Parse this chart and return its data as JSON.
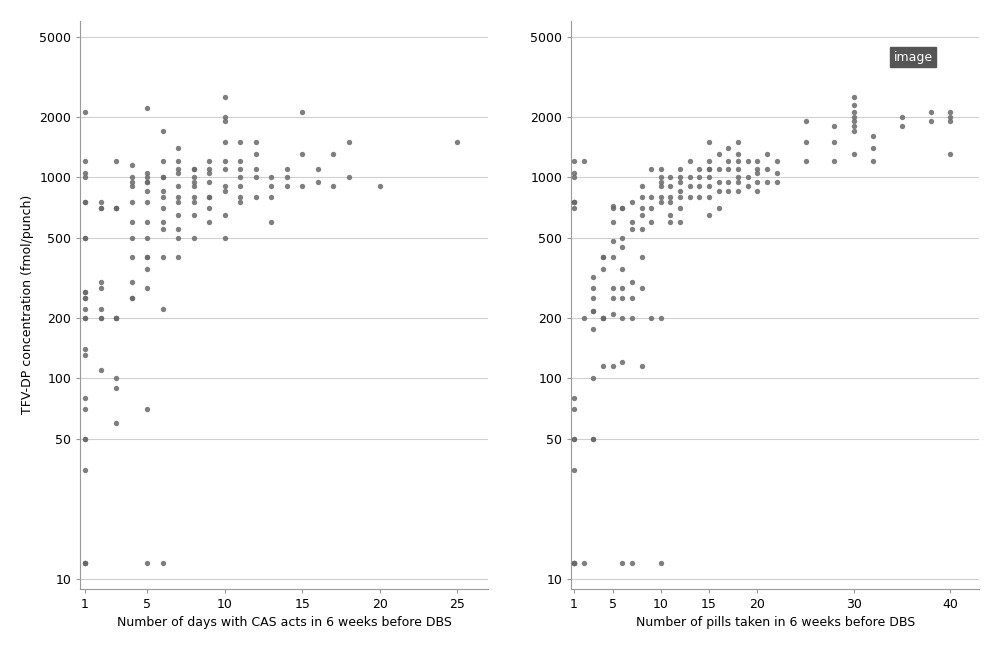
{
  "left_x": [
    1,
    1,
    1,
    1,
    1,
    1,
    1,
    1,
    1,
    1,
    1,
    1,
    1,
    1,
    1,
    1,
    1,
    1,
    1,
    1,
    1,
    1,
    1,
    1,
    1,
    2,
    2,
    2,
    2,
    2,
    2,
    2,
    2,
    2,
    3,
    3,
    3,
    3,
    3,
    3,
    3,
    3,
    3,
    3,
    4,
    4,
    4,
    4,
    4,
    4,
    4,
    4,
    4,
    4,
    4,
    5,
    5,
    5,
    5,
    5,
    5,
    5,
    5,
    5,
    5,
    5,
    5,
    5,
    5,
    5,
    6,
    6,
    6,
    6,
    6,
    6,
    6,
    6,
    6,
    6,
    6,
    6,
    7,
    7,
    7,
    7,
    7,
    7,
    7,
    7,
    7,
    7,
    7,
    8,
    8,
    8,
    8,
    8,
    8,
    8,
    8,
    8,
    9,
    9,
    9,
    9,
    9,
    9,
    9,
    9,
    10,
    10,
    10,
    10,
    10,
    10,
    10,
    10,
    10,
    10,
    11,
    11,
    11,
    11,
    11,
    11,
    11,
    12,
    12,
    12,
    12,
    12,
    13,
    13,
    13,
    13,
    14,
    14,
    14,
    15,
    15,
    15,
    16,
    16,
    17,
    17,
    18,
    18,
    20,
    25
  ],
  "left_y": [
    2100,
    1200,
    1050,
    1000,
    750,
    750,
    500,
    500,
    270,
    270,
    250,
    250,
    220,
    200,
    200,
    140,
    130,
    80,
    70,
    50,
    50,
    35,
    12,
    12,
    12,
    750,
    700,
    700,
    300,
    280,
    220,
    200,
    200,
    110,
    1200,
    700,
    700,
    700,
    200,
    200,
    200,
    100,
    90,
    60,
    1150,
    1000,
    950,
    900,
    750,
    600,
    500,
    400,
    300,
    250,
    250,
    2200,
    1050,
    1000,
    950,
    950,
    850,
    750,
    600,
    500,
    400,
    400,
    350,
    280,
    70,
    12,
    1700,
    1200,
    1000,
    1000,
    850,
    800,
    700,
    600,
    550,
    400,
    220,
    12,
    1400,
    1200,
    1100,
    1050,
    900,
    800,
    750,
    650,
    550,
    500,
    400,
    1100,
    1100,
    1000,
    950,
    900,
    800,
    750,
    650,
    500,
    1200,
    1100,
    1050,
    950,
    800,
    800,
    700,
    600,
    2500,
    2000,
    1900,
    1500,
    1200,
    1100,
    900,
    850,
    650,
    500,
    1500,
    1200,
    1100,
    1000,
    900,
    800,
    750,
    1500,
    1300,
    1100,
    1000,
    800,
    1000,
    900,
    800,
    600,
    1100,
    1000,
    900,
    2100,
    1300,
    900,
    1100,
    950,
    1300,
    900,
    1500,
    1000,
    900,
    1500
  ],
  "right_x": [
    1,
    1,
    1,
    1,
    1,
    1,
    1,
    1,
    1,
    1,
    1,
    1,
    1,
    1,
    1,
    1,
    2,
    2,
    2,
    3,
    3,
    3,
    3,
    3,
    3,
    3,
    3,
    3,
    4,
    4,
    4,
    4,
    4,
    4,
    4,
    5,
    5,
    5,
    5,
    5,
    5,
    5,
    5,
    5,
    6,
    6,
    6,
    6,
    6,
    6,
    6,
    6,
    6,
    6,
    7,
    7,
    7,
    7,
    7,
    7,
    7,
    8,
    8,
    8,
    8,
    8,
    8,
    8,
    8,
    9,
    9,
    9,
    9,
    9,
    10,
    10,
    10,
    10,
    10,
    10,
    10,
    10,
    11,
    11,
    11,
    11,
    11,
    11,
    12,
    12,
    12,
    12,
    12,
    12,
    12,
    13,
    13,
    13,
    13,
    14,
    14,
    14,
    14,
    15,
    15,
    15,
    15,
    15,
    15,
    15,
    15,
    16,
    16,
    16,
    16,
    16,
    17,
    17,
    17,
    17,
    17,
    18,
    18,
    18,
    18,
    18,
    18,
    18,
    19,
    19,
    19,
    20,
    20,
    20,
    20,
    20,
    21,
    21,
    21,
    22,
    22,
    22,
    25,
    25,
    25,
    28,
    28,
    28,
    30,
    30,
    30,
    30,
    30,
    30,
    30,
    30,
    32,
    32,
    32,
    35,
    35,
    38,
    38,
    40,
    40,
    40,
    40
  ],
  "right_y": [
    1200,
    1050,
    1000,
    750,
    750,
    750,
    700,
    80,
    70,
    50,
    50,
    35,
    12,
    12,
    12,
    12,
    1200,
    200,
    12,
    320,
    280,
    250,
    215,
    215,
    175,
    100,
    50,
    50,
    400,
    400,
    350,
    200,
    200,
    200,
    115,
    720,
    700,
    600,
    480,
    400,
    280,
    250,
    210,
    115,
    700,
    700,
    500,
    450,
    350,
    280,
    250,
    200,
    120,
    12,
    750,
    600,
    550,
    300,
    250,
    200,
    12,
    900,
    800,
    700,
    650,
    550,
    400,
    280,
    115,
    1100,
    800,
    700,
    600,
    200,
    1100,
    1000,
    950,
    900,
    800,
    750,
    200,
    12,
    1000,
    900,
    800,
    750,
    650,
    600,
    1100,
    1000,
    950,
    850,
    800,
    700,
    600,
    1200,
    1000,
    900,
    800,
    1100,
    1000,
    900,
    800,
    1500,
    1200,
    1100,
    1100,
    1000,
    900,
    800,
    650,
    1300,
    1100,
    950,
    850,
    700,
    1400,
    1200,
    1100,
    950,
    850,
    1500,
    1300,
    1200,
    1100,
    1000,
    950,
    850,
    1200,
    1000,
    900,
    1200,
    1100,
    1050,
    950,
    850,
    1300,
    1100,
    950,
    1200,
    1050,
    950,
    1900,
    1500,
    1200,
    1800,
    1500,
    1200,
    2500,
    2300,
    2100,
    2000,
    1900,
    1800,
    1700,
    1300,
    1600,
    1400,
    1200,
    2000,
    1800,
    2100,
    1900,
    2100,
    2000,
    1900,
    1300
  ],
  "dot_color": "#696969",
  "dot_size": 15,
  "dot_alpha": 0.85,
  "left_xlabel": "Number of days with CAS acts in 6 weeks before DBS",
  "right_xlabel": "Number of pills taken in 6 weeks before DBS",
  "ylabel": "TFV-DP concentration (fmol/punch)",
  "left_xlim": [
    0.7,
    27
  ],
  "right_xlim": [
    0.7,
    43
  ],
  "ylim": [
    9,
    6000
  ],
  "left_xticks": [
    1,
    5,
    10,
    15,
    20,
    25
  ],
  "right_xticks": [
    1,
    5,
    10,
    15,
    20,
    30,
    40
  ],
  "yticks": [
    10,
    50,
    100,
    200,
    500,
    1000,
    2000,
    5000
  ],
  "ytick_labels": [
    "10",
    "50",
    "100",
    "200",
    "500",
    "1000",
    "2000",
    "5000"
  ],
  "bg_color": "#ffffff",
  "grid_color": "#d0d0d0",
  "legend_label": "image",
  "legend_box_color": "#555555",
  "legend_text_color": "#ffffff"
}
